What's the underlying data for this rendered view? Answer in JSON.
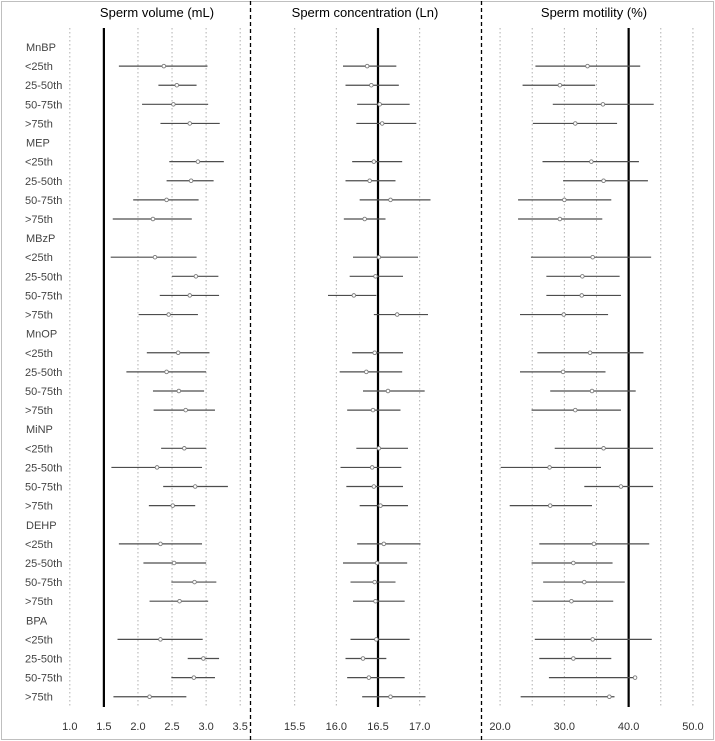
{
  "chart_data": {
    "type": "forest",
    "row_labels": [
      "MnBP",
      "<25th",
      "25-50th",
      "50-75th",
      ">75th",
      "MEP",
      "<25th",
      "25-50th",
      "50-75th",
      ">75th",
      "MBzP",
      "<25th",
      "25-50th",
      "50-75th",
      ">75th",
      "MnOP",
      "<25th",
      "25-50th",
      "50-75th",
      ">75th",
      "MiNP",
      "<25th",
      "25-50th",
      "50-75th",
      ">75th",
      "DEHP",
      "<25th",
      "25-50th",
      "50-75th",
      ">75th",
      "BPA",
      "<25th",
      "25-50th",
      "50-75th",
      ">75th"
    ],
    "panels": [
      {
        "title": "Sperm volume (mL)",
        "xlim": [
          0.9,
          3.6
        ],
        "ticks": [
          1.0,
          1.5,
          2.0,
          2.5,
          3.0,
          3.5
        ],
        "tick_labels": [
          "1.0",
          "1.5",
          "2.0",
          "2.5",
          "3.0",
          "3.5"
        ],
        "gridlines": [
          1.0,
          2.0,
          2.5,
          3.0,
          3.5
        ],
        "reference": 1.5,
        "points": [
          null,
          {
            "est": 2.38,
            "lo": 1.72,
            "hi": 3.02
          },
          {
            "est": 2.57,
            "lo": 2.3,
            "hi": 2.86
          },
          {
            "est": 2.52,
            "lo": 2.06,
            "hi": 3.03
          },
          {
            "est": 2.76,
            "lo": 2.33,
            "hi": 3.2
          },
          null,
          {
            "est": 2.88,
            "lo": 2.46,
            "hi": 3.26
          },
          {
            "est": 2.78,
            "lo": 2.42,
            "hi": 3.11
          },
          {
            "est": 2.42,
            "lo": 1.93,
            "hi": 2.89
          },
          {
            "est": 2.22,
            "lo": 1.63,
            "hi": 2.79
          },
          null,
          {
            "est": 2.25,
            "lo": 1.6,
            "hi": 2.86
          },
          {
            "est": 2.85,
            "lo": 2.5,
            "hi": 3.18
          },
          {
            "est": 2.76,
            "lo": 2.32,
            "hi": 3.19
          },
          {
            "est": 2.45,
            "lo": 2.01,
            "hi": 2.88
          },
          null,
          {
            "est": 2.59,
            "lo": 2.13,
            "hi": 3.05
          },
          {
            "est": 2.42,
            "lo": 1.83,
            "hi": 3.0
          },
          {
            "est": 2.6,
            "lo": 2.22,
            "hi": 2.97
          },
          {
            "est": 2.7,
            "lo": 2.23,
            "hi": 3.13
          },
          null,
          {
            "est": 2.68,
            "lo": 2.34,
            "hi": 3.0
          },
          {
            "est": 2.28,
            "lo": 1.61,
            "hi": 2.94
          },
          {
            "est": 2.84,
            "lo": 2.37,
            "hi": 3.32
          },
          {
            "est": 2.51,
            "lo": 2.16,
            "hi": 2.84
          },
          null,
          {
            "est": 2.33,
            "lo": 1.72,
            "hi": 2.94
          },
          {
            "est": 2.53,
            "lo": 2.08,
            "hi": 3.0
          },
          {
            "est": 2.83,
            "lo": 2.49,
            "hi": 3.15
          },
          {
            "est": 2.61,
            "lo": 2.17,
            "hi": 3.03
          },
          null,
          {
            "est": 2.33,
            "lo": 1.7,
            "hi": 2.95
          },
          {
            "est": 2.96,
            "lo": 2.73,
            "hi": 3.19
          },
          {
            "est": 2.82,
            "lo": 2.49,
            "hi": 3.13
          },
          {
            "est": 2.17,
            "lo": 1.64,
            "hi": 2.71
          }
        ]
      },
      {
        "title": "Sperm concentration (Ln)",
        "xlim": [
          15.0,
          17.7
        ],
        "ticks": [
          15.5,
          16.0,
          16.5,
          17.0
        ],
        "tick_labels": [
          "15.5",
          "16.0",
          "16.5",
          "17.0"
        ],
        "gridlines": [
          15.5,
          16.0,
          17.0
        ],
        "reference": 16.5,
        "points": [
          null,
          {
            "est": 16.37,
            "lo": 16.08,
            "hi": 16.72
          },
          {
            "est": 16.42,
            "lo": 16.11,
            "hi": 16.75
          },
          {
            "est": 16.52,
            "lo": 16.25,
            "hi": 16.88
          },
          {
            "est": 16.55,
            "lo": 16.24,
            "hi": 16.96
          },
          null,
          {
            "est": 16.45,
            "lo": 16.19,
            "hi": 16.79
          },
          {
            "est": 16.4,
            "lo": 16.11,
            "hi": 16.71
          },
          {
            "est": 16.65,
            "lo": 16.28,
            "hi": 17.13
          },
          {
            "est": 16.34,
            "lo": 16.09,
            "hi": 16.59
          },
          null,
          {
            "est": 16.51,
            "lo": 16.2,
            "hi": 16.98
          },
          {
            "est": 16.47,
            "lo": 16.16,
            "hi": 16.8
          },
          {
            "est": 16.21,
            "lo": 15.9,
            "hi": 16.48
          },
          {
            "est": 16.73,
            "lo": 16.45,
            "hi": 17.1
          },
          null,
          {
            "est": 16.46,
            "lo": 16.19,
            "hi": 16.8
          },
          {
            "est": 16.36,
            "lo": 16.04,
            "hi": 16.79
          },
          {
            "est": 16.62,
            "lo": 16.32,
            "hi": 17.06
          },
          {
            "est": 16.44,
            "lo": 16.13,
            "hi": 16.77
          },
          null,
          {
            "est": 16.51,
            "lo": 16.24,
            "hi": 16.86
          },
          {
            "est": 16.43,
            "lo": 16.05,
            "hi": 16.78
          },
          {
            "est": 16.45,
            "lo": 16.12,
            "hi": 16.8
          },
          {
            "est": 16.53,
            "lo": 16.28,
            "hi": 16.86
          },
          null,
          {
            "est": 16.57,
            "lo": 16.25,
            "hi": 17.01
          },
          {
            "est": 16.49,
            "lo": 16.08,
            "hi": 16.85
          },
          {
            "est": 16.46,
            "lo": 16.17,
            "hi": 16.71
          },
          {
            "est": 16.47,
            "lo": 16.2,
            "hi": 16.82
          },
          null,
          {
            "est": 16.48,
            "lo": 16.17,
            "hi": 16.88
          },
          {
            "est": 16.32,
            "lo": 16.11,
            "hi": 16.6
          },
          {
            "est": 16.39,
            "lo": 16.13,
            "hi": 16.82
          },
          {
            "est": 16.65,
            "lo": 16.31,
            "hi": 17.07
          }
        ]
      },
      {
        "title": "Sperm motility (%)",
        "xlim": [
          17.5,
          52.5
        ],
        "ticks": [
          20.0,
          30.0,
          40.0,
          50.0
        ],
        "tick_labels": [
          "20.0",
          "30.0",
          "40.0",
          "50.0"
        ],
        "gridlines": [
          20,
          25,
          30,
          35,
          45,
          50
        ],
        "reference": 40.0,
        "points": [
          null,
          {
            "est": 33.6,
            "lo": 25.5,
            "hi": 41.8
          },
          {
            "est": 29.3,
            "lo": 23.5,
            "hi": 34.8
          },
          {
            "est": 36.0,
            "lo": 28.2,
            "hi": 43.9
          },
          {
            "est": 31.7,
            "lo": 25.1,
            "hi": 38.2
          },
          null,
          {
            "est": 34.2,
            "lo": 26.6,
            "hi": 41.6
          },
          {
            "est": 36.1,
            "lo": 29.8,
            "hi": 43.0
          },
          {
            "est": 30.0,
            "lo": 22.8,
            "hi": 37.3
          },
          {
            "est": 29.3,
            "lo": 22.8,
            "hi": 35.9
          },
          null,
          {
            "est": 34.4,
            "lo": 24.8,
            "hi": 43.5
          },
          {
            "est": 32.8,
            "lo": 27.2,
            "hi": 38.6
          },
          {
            "est": 32.7,
            "lo": 27.2,
            "hi": 38.8
          },
          {
            "est": 29.9,
            "lo": 23.1,
            "hi": 36.8
          },
          null,
          {
            "est": 34.0,
            "lo": 25.8,
            "hi": 42.3
          },
          {
            "est": 29.8,
            "lo": 23.1,
            "hi": 36.4
          },
          {
            "est": 34.3,
            "lo": 27.8,
            "hi": 41.1
          },
          {
            "est": 31.7,
            "lo": 24.9,
            "hi": 38.8
          },
          null,
          {
            "est": 36.1,
            "lo": 28.5,
            "hi": 43.8
          },
          {
            "est": 27.7,
            "lo": 20.1,
            "hi": 35.7
          },
          {
            "est": 38.8,
            "lo": 33.1,
            "hi": 43.8
          },
          {
            "est": 27.8,
            "lo": 21.5,
            "hi": 34.3
          },
          null,
          {
            "est": 34.6,
            "lo": 26.1,
            "hi": 43.2
          },
          {
            "est": 31.4,
            "lo": 24.9,
            "hi": 37.5
          },
          {
            "est": 33.1,
            "lo": 26.7,
            "hi": 39.4
          },
          {
            "est": 31.1,
            "lo": 25.1,
            "hi": 37.6
          },
          null,
          {
            "est": 34.4,
            "lo": 25.4,
            "hi": 43.6
          },
          {
            "est": 31.4,
            "lo": 26.1,
            "hi": 37.3
          },
          {
            "est": 41.0,
            "lo": 27.6,
            "hi": 41.3
          },
          {
            "est": 37.0,
            "lo": 23.2,
            "hi": 37.8
          }
        ]
      }
    ]
  }
}
